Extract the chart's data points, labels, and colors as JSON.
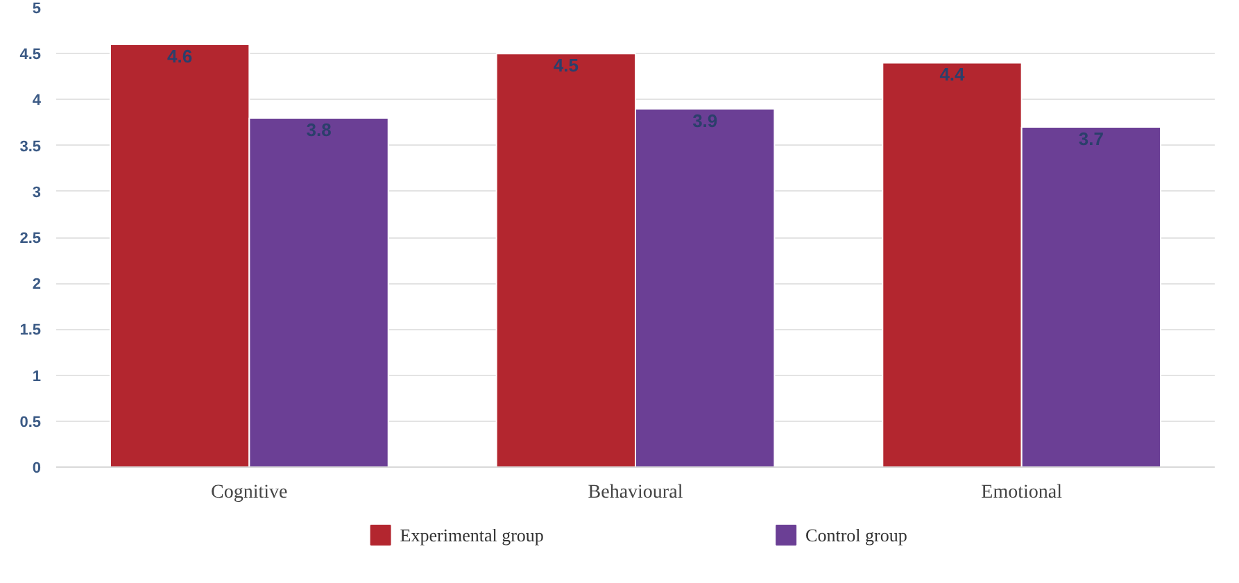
{
  "chart_data": {
    "type": "bar",
    "categories": [
      "Cognitive",
      "Behavioural",
      "Emotional"
    ],
    "series": [
      {
        "name": "Experimental group",
        "color": "#b3262f",
        "values": [
          4.6,
          4.5,
          4.4
        ]
      },
      {
        "name": "Control group",
        "color": "#6b3f95",
        "values": [
          3.8,
          3.9,
          3.7
        ]
      }
    ],
    "ylim": [
      0,
      5
    ],
    "yticks": [
      0,
      0.5,
      1,
      1.5,
      2,
      2.5,
      3,
      3.5,
      4,
      4.5,
      5
    ],
    "grid": "y",
    "legend": "bottom",
    "data_labels": true
  }
}
